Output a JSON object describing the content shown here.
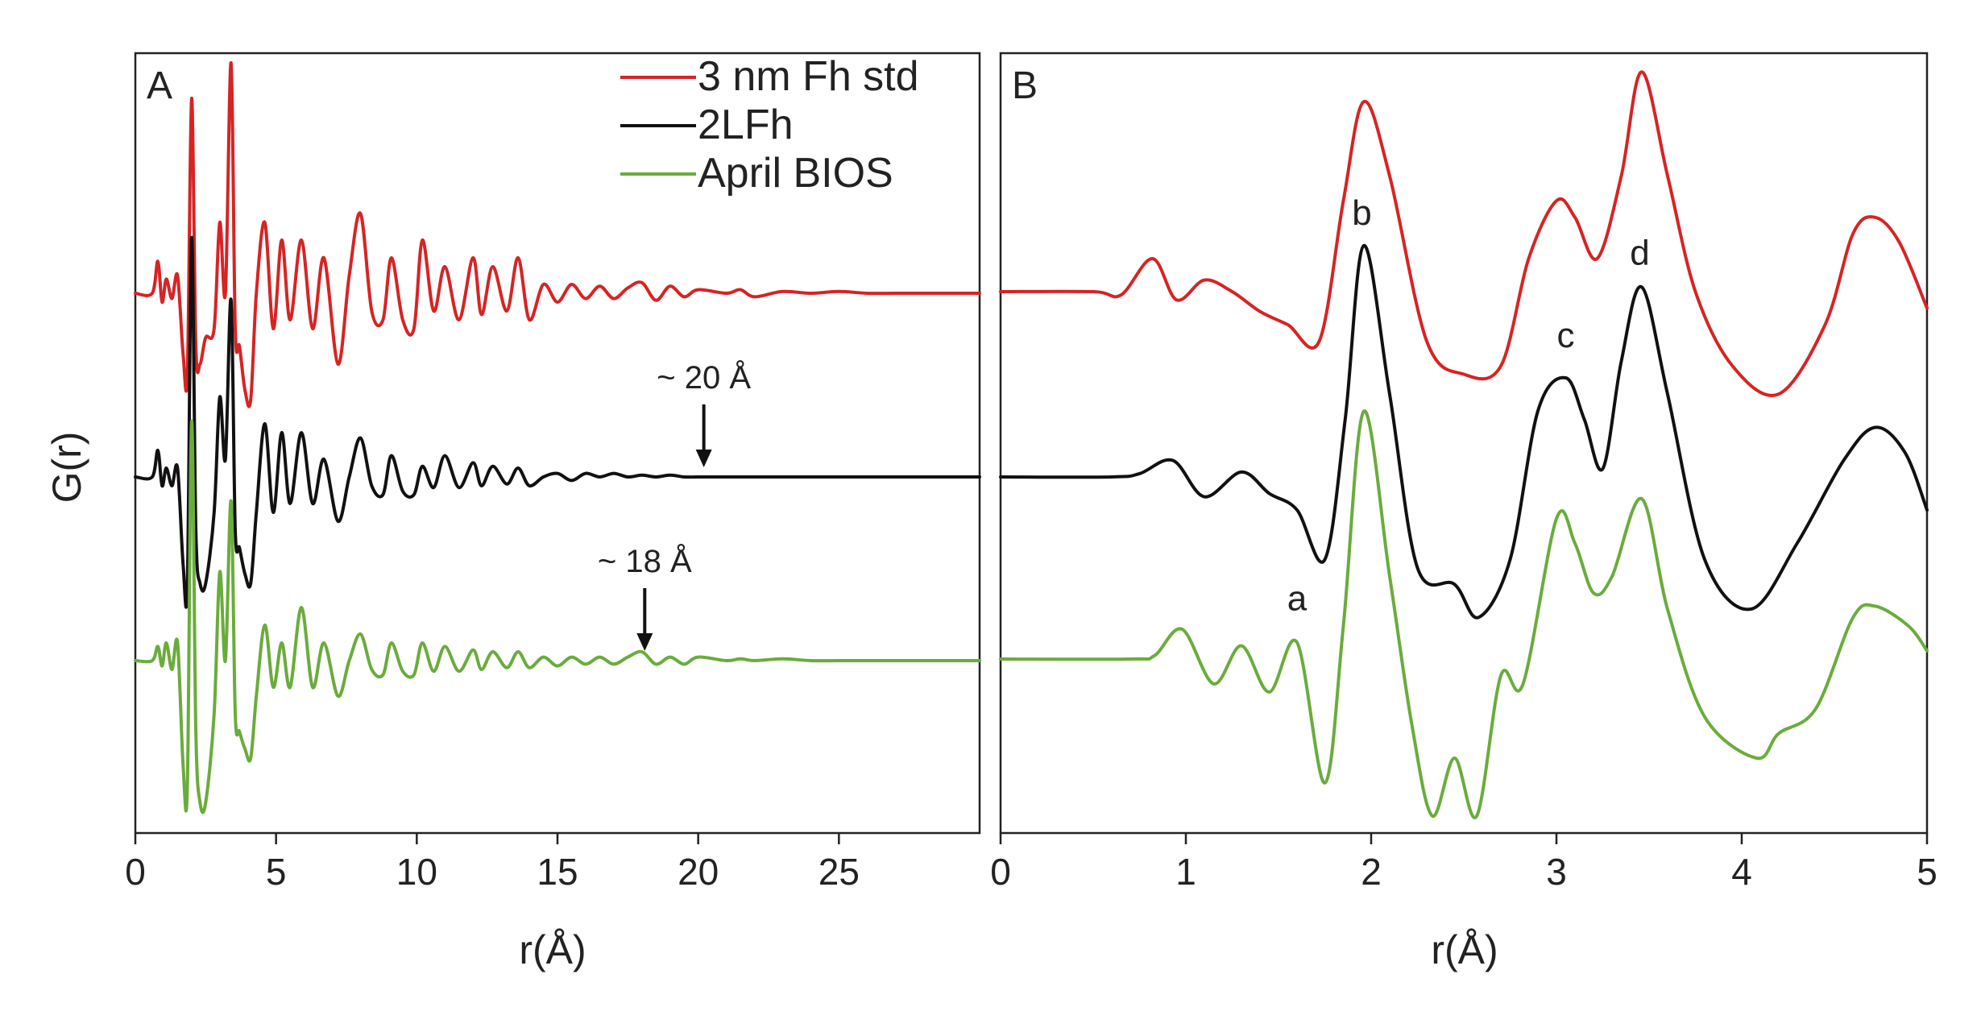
{
  "figure": {
    "ylabel": "G(r)"
  },
  "colors": {
    "fh_std": "#d62424",
    "lfh": "#111111",
    "bios": "#6aac3c"
  },
  "icons": [
    "down-arrow-icon"
  ],
  "legend": [
    {
      "label": "3 nm Fh std",
      "color": "#d62424"
    },
    {
      "label": "2LFh",
      "color": "#111111"
    },
    {
      "label": "April BIOS",
      "color": "#6aac3c"
    }
  ],
  "chart_data": [
    {
      "panel": "A",
      "type": "line",
      "xlabel": "r(Å)",
      "ylabel": "G(r)",
      "xlim": [
        0,
        30
      ],
      "xticks": [
        "0",
        "5",
        "10",
        "15",
        "20",
        "25"
      ],
      "y_ticks_shown": false,
      "grid": false,
      "legend_position": "top-right",
      "annotations": [
        {
          "text": "~ 20 Å",
          "x": 20.2,
          "series": "2LFh"
        },
        {
          "text": "~ 18 Å",
          "x": 18.1,
          "series": "April BIOS"
        }
      ],
      "series": [
        {
          "name": "3 nm Fh std",
          "color": "#d62424",
          "offset": 0,
          "x": [
            0,
            0.6,
            0.8,
            0.95,
            1.1,
            1.3,
            1.5,
            1.7,
            1.85,
            2.0,
            2.15,
            2.3,
            2.5,
            2.8,
            3.0,
            3.2,
            3.4,
            3.55,
            3.7,
            3.9,
            4.1,
            4.3,
            4.6,
            4.9,
            5.2,
            5.5,
            5.9,
            6.3,
            6.7,
            7.2,
            7.6,
            8.0,
            8.4,
            8.8,
            9.1,
            9.5,
            9.9,
            10.2,
            10.6,
            11.0,
            11.5,
            12.0,
            12.3,
            12.7,
            13.2,
            13.6,
            14.0,
            14.5,
            15.0,
            15.5,
            16.0,
            16.5,
            17.0,
            17.5,
            18.0,
            18.5,
            19.0,
            19.5,
            20.0,
            21.0,
            21.5,
            22.0,
            23.0,
            24.0,
            25.0,
            26.0,
            27.0,
            28.0,
            29.0,
            30.0
          ],
          "y": [
            0,
            0,
            0.18,
            -0.05,
            0.08,
            -0.03,
            0.1,
            -0.35,
            -0.45,
            1.1,
            -0.3,
            -0.4,
            -0.25,
            -0.2,
            0.4,
            0.0,
            1.3,
            -0.2,
            -0.3,
            -0.55,
            -0.6,
            0.0,
            0.4,
            -0.2,
            0.3,
            -0.15,
            0.3,
            -0.2,
            0.2,
            -0.4,
            0.1,
            0.45,
            -0.1,
            -0.15,
            0.2,
            -0.15,
            -0.2,
            0.3,
            -0.1,
            0.15,
            -0.15,
            0.2,
            -0.12,
            0.15,
            -0.1,
            0.2,
            -0.15,
            0.05,
            -0.05,
            0.05,
            -0.03,
            0.04,
            -0.03,
            0.03,
            0.06,
            -0.04,
            0.04,
            -0.02,
            0.02,
            0.0,
            0.02,
            -0.02,
            0.01,
            0.0,
            0.01,
            0.0,
            0.0,
            0.0,
            0.0,
            0.0
          ]
        },
        {
          "name": "2LFh",
          "color": "#111111",
          "offset": 0,
          "x": [
            0,
            0.6,
            0.8,
            0.95,
            1.1,
            1.3,
            1.5,
            1.7,
            1.85,
            2.0,
            2.15,
            2.3,
            2.5,
            2.8,
            3.0,
            3.2,
            3.4,
            3.55,
            3.7,
            3.9,
            4.1,
            4.3,
            4.6,
            4.9,
            5.2,
            5.5,
            5.9,
            6.3,
            6.7,
            7.2,
            7.6,
            8.0,
            8.4,
            8.8,
            9.1,
            9.5,
            9.9,
            10.2,
            10.6,
            11.0,
            11.5,
            12.0,
            12.3,
            12.7,
            13.2,
            13.6,
            14.0,
            14.5,
            15.0,
            15.5,
            16.0,
            16.5,
            17.0,
            17.5,
            18.0,
            18.5,
            19.0,
            19.5,
            20.0,
            21.0,
            21.5,
            22.0,
            23.0,
            24.0,
            25.0,
            26.0,
            27.0,
            28.0,
            29.0,
            30.0
          ],
          "y": [
            0,
            0,
            0.15,
            -0.05,
            0.05,
            -0.05,
            0.05,
            -0.5,
            -0.6,
            1.35,
            -0.3,
            -0.6,
            -0.6,
            -0.2,
            0.45,
            0.1,
            1.0,
            -0.3,
            -0.4,
            -0.55,
            -0.6,
            -0.2,
            0.3,
            -0.2,
            0.25,
            -0.15,
            0.25,
            -0.15,
            0.1,
            -0.25,
            0.0,
            0.22,
            -0.05,
            -0.1,
            0.12,
            -0.08,
            -0.1,
            0.06,
            -0.06,
            0.12,
            -0.06,
            0.08,
            -0.05,
            0.06,
            -0.04,
            0.05,
            -0.05,
            0.0,
            0.02,
            -0.02,
            0.02,
            0.0,
            0.02,
            0.0,
            0.01,
            0.0,
            0.01,
            0.0,
            0.0,
            0.0,
            0.0,
            0.0,
            0.0,
            0.0,
            0.0,
            0.0,
            0.0,
            0.0,
            0.0,
            0.0
          ]
        },
        {
          "name": "April BIOS",
          "color": "#6aac3c",
          "offset": 0,
          "x": [
            0,
            0.6,
            0.8,
            0.95,
            1.1,
            1.3,
            1.5,
            1.7,
            1.85,
            2.0,
            2.15,
            2.3,
            2.5,
            2.8,
            3.0,
            3.2,
            3.4,
            3.55,
            3.7,
            3.9,
            4.1,
            4.3,
            4.6,
            4.9,
            5.2,
            5.5,
            5.9,
            6.3,
            6.7,
            7.2,
            7.6,
            8.0,
            8.4,
            8.8,
            9.1,
            9.5,
            9.9,
            10.2,
            10.6,
            11.0,
            11.5,
            12.0,
            12.3,
            12.7,
            13.2,
            13.6,
            14.0,
            14.5,
            15.0,
            15.5,
            16.0,
            16.5,
            17.0,
            17.5,
            18.0,
            18.5,
            19.0,
            19.5,
            20.0,
            21.0,
            21.5,
            22.0,
            23.0,
            24.0,
            25.0,
            26.0,
            27.0,
            28.0,
            29.0,
            30.0
          ],
          "y": [
            0,
            0,
            0.08,
            -0.03,
            0.1,
            -0.05,
            0.1,
            -0.6,
            -0.7,
            1.35,
            -0.4,
            -0.8,
            -0.8,
            -0.3,
            0.5,
            0.0,
            0.9,
            -0.3,
            -0.4,
            -0.5,
            -0.55,
            -0.2,
            0.2,
            -0.15,
            0.1,
            -0.15,
            0.3,
            -0.15,
            0.1,
            -0.2,
            0.0,
            0.15,
            -0.05,
            -0.08,
            0.1,
            -0.06,
            -0.08,
            0.1,
            -0.06,
            0.08,
            -0.06,
            0.06,
            -0.05,
            0.05,
            -0.04,
            0.05,
            -0.04,
            0.02,
            -0.03,
            0.02,
            -0.02,
            0.02,
            -0.02,
            0.02,
            0.05,
            -0.02,
            0.02,
            -0.02,
            0.02,
            0.0,
            0.01,
            0.0,
            0.01,
            0.0,
            0.0,
            0.0,
            0.0,
            0.0,
            0.0,
            0.0
          ]
        }
      ]
    },
    {
      "panel": "B",
      "type": "line",
      "xlabel": "r(Å)",
      "xlim": [
        0,
        5
      ],
      "xticks": [
        "0",
        "1",
        "2",
        "3",
        "4",
        "5"
      ],
      "y_ticks_shown": false,
      "grid": false,
      "peak_labels": [
        {
          "text": "a",
          "x": 1.6,
          "series": "April BIOS"
        },
        {
          "text": "b",
          "x": 1.95,
          "series": "2LFh"
        },
        {
          "text": "c",
          "x": 3.05,
          "series": "2LFh"
        },
        {
          "text": "d",
          "x": 3.45,
          "series": "2LFh"
        }
      ],
      "series": [
        {
          "name": "3 nm Fh std",
          "color": "#d62424",
          "x": [
            0,
            0.5,
            0.65,
            0.82,
            0.95,
            1.1,
            1.25,
            1.4,
            1.55,
            1.72,
            1.85,
            1.96,
            2.1,
            2.3,
            2.5,
            2.7,
            2.85,
            3.0,
            3.1,
            3.22,
            3.35,
            3.46,
            3.6,
            3.75,
            3.95,
            4.2,
            4.45,
            4.6,
            4.72,
            4.85,
            5.0
          ],
          "y": [
            0,
            0,
            -0.02,
            0.2,
            -0.05,
            0.07,
            0.0,
            -0.12,
            -0.2,
            -0.3,
            0.55,
            1.15,
            0.7,
            -0.3,
            -0.5,
            -0.45,
            0.2,
            0.55,
            0.45,
            0.2,
            0.7,
            1.33,
            0.7,
            0.0,
            -0.45,
            -0.62,
            -0.2,
            0.35,
            0.45,
            0.3,
            -0.1
          ]
        },
        {
          "name": "2LFh",
          "color": "#111111",
          "x": [
            0,
            0.6,
            0.75,
            0.93,
            1.1,
            1.3,
            1.45,
            1.6,
            1.75,
            1.86,
            1.96,
            2.1,
            2.25,
            2.45,
            2.58,
            2.75,
            2.9,
            3.05,
            3.15,
            3.25,
            3.35,
            3.46,
            3.6,
            3.8,
            4.05,
            4.3,
            4.55,
            4.72,
            4.88,
            5.0
          ],
          "y": [
            0,
            0,
            0.02,
            0.1,
            -0.12,
            0.03,
            -0.1,
            -0.2,
            -0.5,
            0.35,
            1.4,
            0.5,
            -0.55,
            -0.65,
            -0.85,
            -0.5,
            0.4,
            0.6,
            0.35,
            0.05,
            0.7,
            1.15,
            0.5,
            -0.5,
            -0.8,
            -0.4,
            0.1,
            0.3,
            0.15,
            -0.2
          ]
        },
        {
          "name": "April BIOS",
          "color": "#6aac3c",
          "x": [
            0,
            0.7,
            0.83,
            0.98,
            1.15,
            1.3,
            1.45,
            1.6,
            1.75,
            1.85,
            1.96,
            2.1,
            2.22,
            2.33,
            2.45,
            2.57,
            2.7,
            2.82,
            3.0,
            3.1,
            3.2,
            3.3,
            3.46,
            3.6,
            3.8,
            4.08,
            4.2,
            4.4,
            4.6,
            4.72,
            4.9,
            5.0
          ],
          "y": [
            0,
            0,
            0.02,
            0.18,
            -0.15,
            0.08,
            -0.2,
            0.1,
            -0.75,
            0.2,
            1.5,
            0.5,
            -0.4,
            -0.95,
            -0.6,
            -0.95,
            -0.1,
            -0.15,
            0.85,
            0.7,
            0.4,
            0.5,
            0.97,
            0.3,
            -0.35,
            -0.6,
            -0.45,
            -0.3,
            0.25,
            0.32,
            0.2,
            0.05
          ]
        }
      ]
    }
  ]
}
